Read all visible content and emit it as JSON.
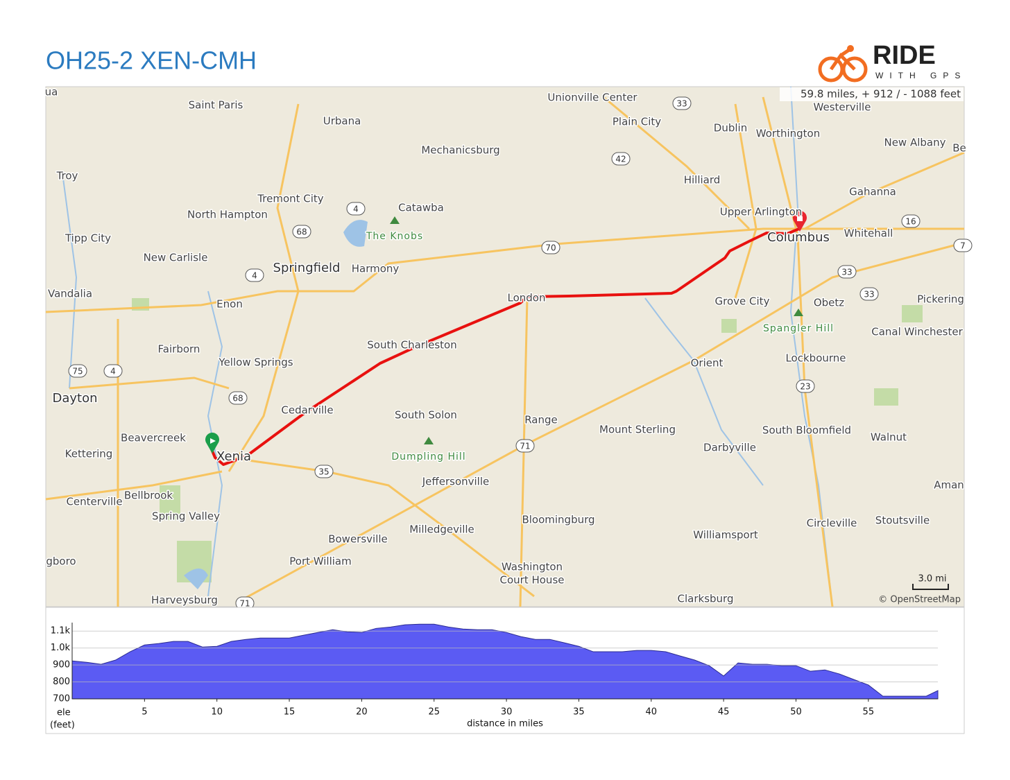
{
  "header": {
    "title": "OH25-2 XEN-CMH",
    "logo_text": "RIDE",
    "logo_subtext": "WITH GPS"
  },
  "map": {
    "stats": "59.8 miles, + 912 / - 1088 feet",
    "scale": "3.0 mi",
    "attribution": "© OpenStreetMap",
    "places": [
      "ua",
      "Saint Paris",
      "Urbana",
      "Unionville Center",
      "Plain City",
      "Westerville",
      "Dublin",
      "Worthington",
      "New Albany",
      "Be",
      "Mechanicsburg",
      "Troy",
      "Hilliard",
      "Gahanna",
      "Tremont City",
      "Catawba",
      "North Hampton",
      "Upper Arlington",
      "The Knobs",
      "Tipp City",
      "Columbus",
      "Whitehall",
      "New Carlisle",
      "Springfield",
      "Harmony",
      "Vandalia",
      "London",
      "Grove City",
      "Obetz",
      "Pickering",
      "Enon",
      "Spangler Hill",
      "Canal Winchester",
      "South Charleston",
      "Fairborn",
      "Yellow Springs",
      "Orient",
      "Lockbourne",
      "Dayton",
      "Cedarville",
      "South Solon",
      "Range",
      "Mount Sterling",
      "South Bloomfield",
      "Walnut",
      "Beavercreek",
      "Kettering",
      "Xenia",
      "Dumpling Hill",
      "Darbyville",
      "Jeffersonville",
      "Aman",
      "Bellbrook",
      "Centerville",
      "Spring Valley",
      "Bloomingburg",
      "Stoutsville",
      "Circleville",
      "Milledgeville",
      "Williamsport",
      "Bowersville",
      "gboro",
      "Port William",
      "Washington",
      "Court House",
      "Clarksburg",
      "Harveysburg"
    ],
    "shields": [
      "33",
      "42",
      "4",
      "68",
      "70",
      "4",
      "16",
      "33",
      "33",
      "75",
      "4",
      "68",
      "23",
      "71",
      "35",
      "71",
      "7"
    ]
  },
  "chart_data": {
    "type": "area",
    "color": "#5b5bf3",
    "x_label": "distance in miles",
    "y_label": [
      "ele",
      "(feet)"
    ],
    "x": [
      0,
      1,
      2,
      3,
      4,
      5,
      6,
      7,
      8,
      9,
      10,
      11,
      12,
      13,
      14,
      15,
      16,
      17,
      18,
      19,
      20,
      21,
      22,
      23,
      24,
      25,
      26,
      27,
      28,
      29,
      30,
      31,
      32,
      33,
      34,
      35,
      36,
      37,
      38,
      39,
      40,
      41,
      42,
      43,
      44,
      45,
      46,
      47,
      48,
      49,
      50,
      51,
      52,
      53,
      54,
      55,
      56,
      57,
      58,
      59,
      59.8
    ],
    "values": [
      924,
      916,
      904,
      929,
      978,
      1018,
      1027,
      1039,
      1039,
      1006,
      1010,
      1039,
      1051,
      1059,
      1059,
      1059,
      1076,
      1092,
      1108,
      1096,
      1092,
      1116,
      1124,
      1137,
      1141,
      1141,
      1124,
      1112,
      1108,
      1108,
      1092,
      1067,
      1051,
      1051,
      1031,
      1010,
      978,
      978,
      978,
      986,
      986,
      978,
      953,
      929,
      896,
      835,
      912,
      904,
      904,
      896,
      896,
      863,
      871,
      847,
      814,
      782,
      716,
      716,
      716,
      716,
      749
    ],
    "xlim": [
      0,
      59.8
    ],
    "ylim": [
      700,
      1150
    ],
    "xticks": [
      5,
      10,
      15,
      20,
      25,
      30,
      35,
      40,
      45,
      50,
      55
    ],
    "yticks": [
      700,
      800,
      900,
      {
        "value": 1000,
        "label": "1.0k"
      },
      {
        "value": 1100,
        "label": "1.1k"
      }
    ],
    "grid": true
  }
}
